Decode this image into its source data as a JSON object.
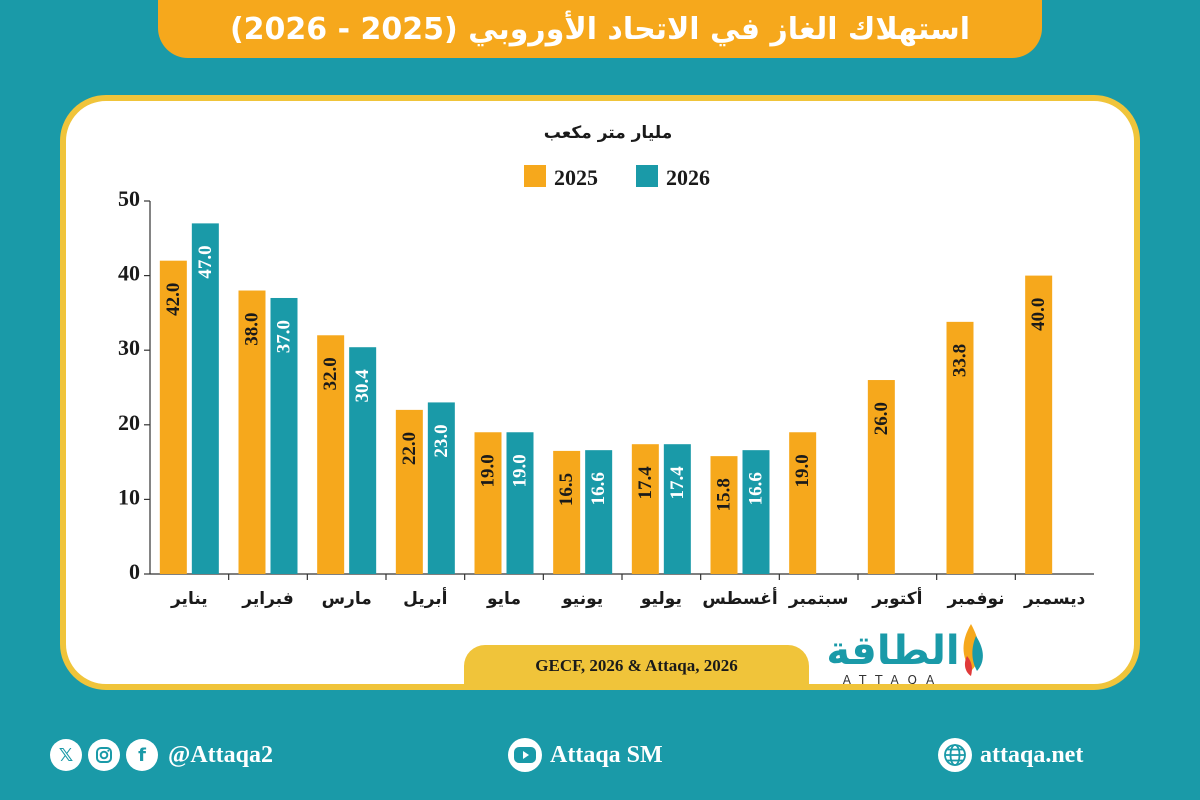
{
  "header": {
    "title": "استهلاك الغاز في الاتحاد الأوروبي (2025 - 2026)"
  },
  "chart_data": {
    "type": "bar",
    "title": "استهلاك الغاز في الاتحاد الأوروبي (2025 - 2026)",
    "ylabel": "مليار متر مكعب",
    "ylim": [
      0,
      50
    ],
    "yticks": [
      "0",
      "10",
      "20",
      "30",
      "40",
      "50"
    ],
    "legend_position": "top",
    "categories": [
      "يناير",
      "فبراير",
      "مارس",
      "أبريل",
      "مايو",
      "يونيو",
      "يوليو",
      "أغسطس",
      "سبتمبر",
      "أكتوبر",
      "نوفمبر",
      "ديسمبر"
    ],
    "series": [
      {
        "name": "2025",
        "color": "#f6a81c",
        "values": [
          42.0,
          38.0,
          32.0,
          22.0,
          19.0,
          16.5,
          17.4,
          15.8,
          19.0,
          26.0,
          33.8,
          40.0
        ],
        "labels": [
          "42.0",
          "38.0",
          "32.0",
          "22.0",
          "19.0",
          "16.5",
          "17.4",
          "15.8",
          "19.0",
          "26.0",
          "33.8",
          "40.0"
        ]
      },
      {
        "name": "2026",
        "color": "#1a9aa8",
        "values": [
          47.0,
          37.0,
          30.4,
          23.0,
          19.0,
          16.6,
          17.4,
          16.6,
          null,
          null,
          null,
          null
        ],
        "labels": [
          "47.0",
          "37.0",
          "30.4",
          "23.0",
          "19.0",
          "16.6",
          "17.4",
          "16.6",
          null,
          null,
          null,
          null
        ]
      }
    ],
    "grid": false
  },
  "source": "GECF, 2026 & Attaqa, 2026",
  "logo": {
    "arabic": "الطاقة",
    "latin": "ATTAQA"
  },
  "footer": {
    "social_handle": "@Attaqa2",
    "youtube": "Attaqa SM",
    "website": "attaqa.net",
    "icons": [
      "x-icon",
      "instagram-icon",
      "facebook-icon",
      "youtube-icon",
      "globe-icon"
    ]
  }
}
